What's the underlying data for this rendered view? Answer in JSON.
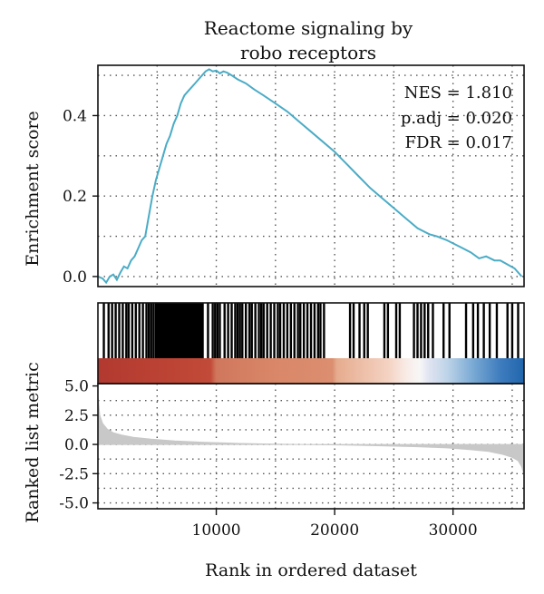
{
  "chart_data": {
    "type": "line",
    "title_lines": [
      "Reactome signaling by",
      "robo receptors"
    ],
    "xlabel": "Rank in ordered dataset",
    "xlim": [
      0,
      36000
    ],
    "x_ticks": [
      10000,
      20000,
      30000
    ],
    "x_tick_labels": [
      "10000",
      "20000",
      "30000"
    ],
    "stats": [
      "NES = 1.810",
      "p.adj = 0.020",
      "FDR = 0.017"
    ],
    "enrichment": {
      "ylabel": "Enrichment score",
      "ylim": [
        -0.025,
        0.525
      ],
      "y_ticks": [
        0.0,
        0.2,
        0.4
      ],
      "y_tick_labels": [
        "0.0",
        "0.2",
        "0.4"
      ],
      "line_color": "#4bacc6",
      "x": [
        0,
        400,
        700,
        1000,
        1300,
        1600,
        1900,
        2200,
        2500,
        2800,
        3100,
        3400,
        3700,
        4000,
        4300,
        4600,
        4900,
        5200,
        5500,
        5800,
        6100,
        6400,
        6700,
        7000,
        7300,
        7600,
        7900,
        8200,
        8500,
        8800,
        9100,
        9400,
        9700,
        10000,
        10300,
        10600,
        10900,
        11300,
        11800,
        12500,
        13200,
        14000,
        15000,
        16000,
        17000,
        18000,
        19000,
        20000,
        21000,
        22000,
        23000,
        24000,
        25000,
        26000,
        27000,
        28000,
        28600,
        29500,
        30500,
        31500,
        32200,
        32800,
        33500,
        34000,
        34600,
        35200,
        35800
      ],
      "y": [
        0.0,
        -0.005,
        -0.015,
        0.0,
        0.005,
        -0.008,
        0.01,
        0.025,
        0.02,
        0.04,
        0.05,
        0.07,
        0.09,
        0.1,
        0.15,
        0.2,
        0.24,
        0.27,
        0.3,
        0.33,
        0.35,
        0.38,
        0.4,
        0.43,
        0.45,
        0.46,
        0.47,
        0.48,
        0.49,
        0.5,
        0.51,
        0.515,
        0.51,
        0.512,
        0.505,
        0.51,
        0.507,
        0.5,
        0.49,
        0.48,
        0.465,
        0.45,
        0.43,
        0.41,
        0.385,
        0.36,
        0.335,
        0.31,
        0.28,
        0.25,
        0.22,
        0.195,
        0.17,
        0.145,
        0.12,
        0.105,
        0.1,
        0.09,
        0.075,
        0.06,
        0.045,
        0.05,
        0.04,
        0.04,
        0.03,
        0.02,
        0.0
      ]
    },
    "hits": {
      "color": "#000000",
      "positions": [
        500,
        900,
        1200,
        1500,
        1800,
        2100,
        2400,
        2600,
        2900,
        3200,
        3500,
        3800,
        4100,
        4300,
        4500,
        4700,
        4900,
        5000,
        5100,
        5200,
        5300,
        5450,
        5550,
        5650,
        5750,
        5850,
        5950,
        6050,
        6150,
        6250,
        6350,
        6450,
        6550,
        6650,
        6750,
        6850,
        6950,
        7050,
        7150,
        7250,
        7350,
        7450,
        7550,
        7650,
        7750,
        7850,
        7950,
        8050,
        8150,
        8250,
        8350,
        8450,
        8550,
        8650,
        8750,
        8850,
        9300,
        9700,
        9900,
        10100,
        10300,
        10700,
        11000,
        11300,
        11600,
        11800,
        12000,
        12200,
        12500,
        12800,
        13000,
        13300,
        13600,
        13800,
        14000,
        14300,
        14600,
        14900,
        15200,
        15400,
        15700,
        16000,
        16300,
        16600,
        16900,
        17100,
        17400,
        17700,
        18000,
        18300,
        18600,
        18800,
        19100,
        21300,
        21600,
        22100,
        22500,
        22800,
        24200,
        24500,
        25200,
        25500,
        26700,
        27000,
        27300,
        27600,
        27900,
        28300,
        29200,
        29700,
        31100,
        31700,
        32100,
        32600,
        33100,
        33700,
        34600,
        35000,
        35500
      ]
    },
    "ranked_metric": {
      "ylabel": "Ranked list metric",
      "ylim": [
        -5.5,
        5.2
      ],
      "y_ticks": [
        5.0,
        2.5,
        0.0,
        -2.5,
        -5.0
      ],
      "y_tick_labels": [
        "5.0",
        "2.5",
        "0.0",
        "-2.5",
        "-5.0"
      ],
      "fill_color": "#c8c8c8",
      "x": [
        0,
        150,
        400,
        800,
        1300,
        2000,
        3000,
        4500,
        6500,
        9000,
        12000,
        15000,
        18000,
        21000,
        24000,
        27000,
        29500,
        31500,
        33000,
        34200,
        35000,
        35500,
        35800,
        36000
      ],
      "y": [
        4.2,
        2.5,
        1.8,
        1.3,
        1.0,
        0.8,
        0.6,
        0.45,
        0.3,
        0.18,
        0.08,
        0.02,
        -0.02,
        -0.06,
        -0.12,
        -0.2,
        -0.3,
        -0.45,
        -0.6,
        -0.85,
        -1.1,
        -1.4,
        -1.9,
        -2.6
      ]
    },
    "color_bar": {
      "stops": [
        {
          "x": 0,
          "color": "#b2392f"
        },
        {
          "x": 9500,
          "color": "#c24a38"
        },
        {
          "x": 10000,
          "color": "#d0775d"
        },
        {
          "x": 15000,
          "color": "#d98768"
        },
        {
          "x": 19800,
          "color": "#dc8e70"
        },
        {
          "x": 20200,
          "color": "#e6ac8f"
        },
        {
          "x": 24500,
          "color": "#f4d2c2"
        },
        {
          "x": 26000,
          "color": "#f8ebe6"
        },
        {
          "x": 27200,
          "color": "#f7f7f7"
        },
        {
          "x": 28000,
          "color": "#dfe3f1"
        },
        {
          "x": 29500,
          "color": "#bed4e8"
        },
        {
          "x": 31500,
          "color": "#7fadd6"
        },
        {
          "x": 34000,
          "color": "#3e7cbe"
        },
        {
          "x": 36000,
          "color": "#2166ac"
        }
      ]
    }
  }
}
